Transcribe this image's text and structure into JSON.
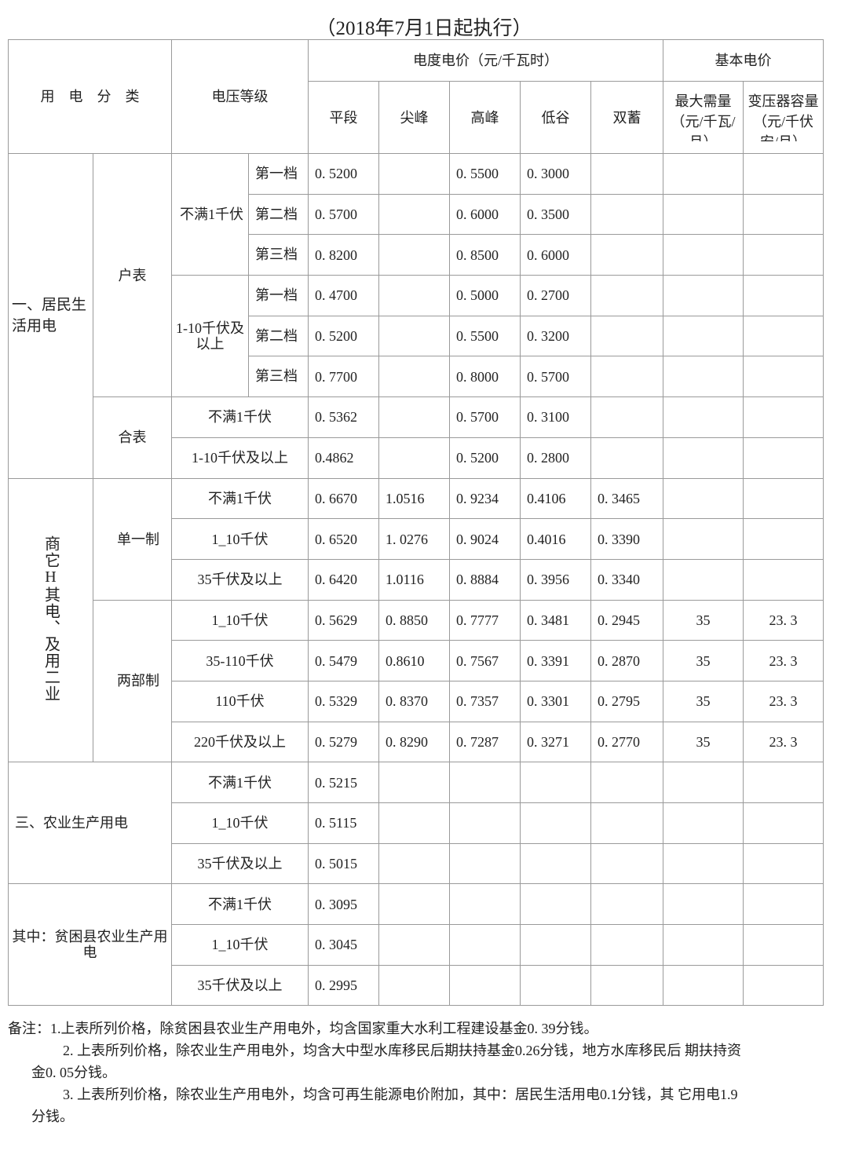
{
  "title": "（2018年7月1日起执行）",
  "header": {
    "category": "用　电　分　类",
    "voltage": "电压等级",
    "energy_price": "电度电价（元/千瓦时）",
    "basic_price": "基本电价",
    "columns": [
      "平段",
      "尖峰",
      "高峰",
      "低谷",
      "双蓄",
      "最大需量（元/千瓦/月）",
      "变压器容量（元/千伏安/月）"
    ]
  },
  "groups": {
    "residential": "一、居民生活用电",
    "household_meter": "户表",
    "combined_meter": "合表",
    "res_low": "不满1千伏",
    "res_high": "1-10千伏及以上",
    "commercial": "商它H其电、及用二业",
    "single": "单一制",
    "two_part": "两部制",
    "agri": "三、农业生产用电",
    "poor_agri": "其中：贫困县农业生产用电"
  },
  "rows": [
    {
      "voltage": "第一档",
      "prices": [
        "0. 5200",
        "",
        "0. 5500",
        "0. 3000",
        "",
        "",
        ""
      ]
    },
    {
      "voltage": "第二档",
      "prices": [
        "0. 5700",
        "",
        "0. 6000",
        "0. 3500",
        "",
        "",
        ""
      ]
    },
    {
      "voltage": "第三档",
      "prices": [
        "0. 8200",
        "",
        "0. 8500",
        "0. 6000",
        "",
        "",
        ""
      ]
    },
    {
      "voltage": "第一档",
      "prices": [
        "0. 4700",
        "",
        "0. 5000",
        "0. 2700",
        "",
        "",
        ""
      ]
    },
    {
      "voltage": "第二档",
      "prices": [
        "0. 5200",
        "",
        "0. 5500",
        "0. 3200",
        "",
        "",
        ""
      ]
    },
    {
      "voltage": "第三档",
      "prices": [
        "0. 7700",
        "",
        "0. 8000",
        "0. 5700",
        "",
        "",
        ""
      ]
    },
    {
      "voltage": "不满1千伏",
      "prices": [
        "0. 5362",
        "",
        "0. 5700",
        "0. 3100",
        "",
        "",
        ""
      ]
    },
    {
      "voltage": "1-10千伏及以上",
      "prices": [
        "0.4862",
        "",
        "0. 5200",
        "0. 2800",
        "",
        "",
        ""
      ]
    },
    {
      "voltage": "不满1千伏",
      "prices": [
        "0. 6670",
        "1.0516",
        "0. 9234",
        "0.4106",
        "0. 3465",
        "",
        ""
      ]
    },
    {
      "voltage": "1_10千伏",
      "prices": [
        "0. 6520",
        "1. 0276",
        "0. 9024",
        "0.4016",
        "0. 3390",
        "",
        ""
      ]
    },
    {
      "voltage": "35千伏及以上",
      "prices": [
        "0. 6420",
        "1.0116",
        "0. 8884",
        "0. 3956",
        "0. 3340",
        "",
        ""
      ]
    },
    {
      "voltage": "1_10千伏",
      "prices": [
        "0. 5629",
        "0. 8850",
        "0. 7777",
        "0. 3481",
        "0. 2945",
        "35",
        "23. 3"
      ]
    },
    {
      "voltage": "35-110千伏",
      "prices": [
        "0. 5479",
        "0.8610",
        "0. 7567",
        "0. 3391",
        "0. 2870",
        "35",
        "23. 3"
      ]
    },
    {
      "voltage": "110千伏",
      "prices": [
        "0. 5329",
        "0. 8370",
        "0. 7357",
        "0. 3301",
        "0. 2795",
        "35",
        "23. 3"
      ]
    },
    {
      "voltage": "220千伏及以上",
      "prices": [
        "0. 5279",
        "0. 8290",
        "0. 7287",
        "0. 3271",
        "0. 2770",
        "35",
        "23. 3"
      ]
    },
    {
      "voltage": "不满1千伏",
      "prices": [
        "0. 5215",
        "",
        "",
        "",
        "",
        "",
        ""
      ]
    },
    {
      "voltage": "1_10千伏",
      "prices": [
        "0. 5115",
        "",
        "",
        "",
        "",
        "",
        ""
      ]
    },
    {
      "voltage": "35千伏及以上",
      "prices": [
        "0. 5015",
        "",
        "",
        "",
        "",
        "",
        ""
      ]
    },
    {
      "voltage": "不满1千伏",
      "prices": [
        "0. 3095",
        "",
        "",
        "",
        "",
        "",
        ""
      ]
    },
    {
      "voltage": "1_10千伏",
      "prices": [
        "0. 3045",
        "",
        "",
        "",
        "",
        "",
        ""
      ]
    },
    {
      "voltage": "35千伏及以上",
      "prices": [
        "0. 2995",
        "",
        "",
        "",
        "",
        "",
        ""
      ]
    }
  ],
  "notes": [
    "备注：1.上表所列价格，除贫困县农业生产用电外，均含国家重大水利工程建设基金0. 39分钱。",
    "2. 上表所列价格，除农业生产用电外，均含大中型水库移民后期扶持基金0.26分钱，地方水库移民后 期扶持资",
    "金0. 05分钱。",
    "3. 上表所列价格，除农业生产用电外，均含可再生能源电价附加，其中：居民生活用电0.1分钱，其 它用电1.9",
    "分钱。"
  ]
}
